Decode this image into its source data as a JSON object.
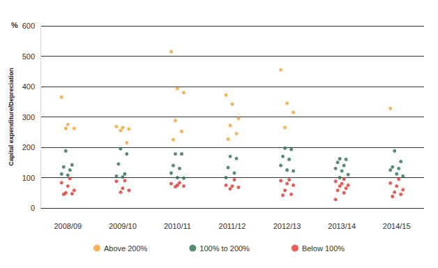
{
  "chart_data": {
    "type": "scatter",
    "y_label": "Capital expenditure/Depreciation",
    "annotations": [
      "%"
    ],
    "categories": [
      "2008/09",
      "2009/10",
      "2010/11",
      "2011/12",
      "2012/13",
      "2013/14",
      "2014/15"
    ],
    "series": [
      {
        "name": "Above 200%",
        "color": "#f7a02c",
        "values": [
          [
            365,
            275,
            262,
            262
          ],
          [
            268,
            265,
            260,
            255,
            215
          ],
          [
            515,
            393,
            380,
            288,
            252,
            225
          ],
          [
            372,
            342,
            295,
            272,
            245,
            227
          ],
          [
            455,
            345,
            315,
            265
          ],
          [],
          [
            328
          ]
        ]
      },
      {
        "name": "100% to 200%",
        "color": "#2a7050",
        "values": [
          [
            188,
            142,
            135,
            125,
            112,
            108
          ],
          [
            195,
            178,
            145,
            112,
            105,
            102
          ],
          [
            178,
            178,
            140,
            130,
            115,
            100,
            98
          ],
          [
            170,
            163,
            133,
            115,
            100
          ],
          [
            197,
            193,
            170,
            160,
            140,
            125,
            122
          ],
          [
            162,
            160,
            150,
            140,
            130,
            122,
            110,
            100
          ],
          [
            188,
            153,
            135,
            130,
            125,
            112,
            105
          ]
        ]
      },
      {
        "name": "Below 100%",
        "color": "#e8302a",
        "values": [
          [
            97,
            83,
            72,
            58,
            50,
            47,
            45
          ],
          [
            90,
            88,
            65,
            58,
            52
          ],
          [
            83,
            80,
            75,
            72,
            70
          ],
          [
            93,
            75,
            72,
            68,
            63
          ],
          [
            93,
            90,
            80,
            75,
            58,
            45,
            42
          ],
          [
            95,
            88,
            80,
            75,
            72,
            65,
            58,
            50,
            28
          ],
          [
            95,
            82,
            72,
            60,
            52,
            45,
            38
          ]
        ]
      }
    ],
    "ylim": [
      0,
      600
    ],
    "yticks": [
      0,
      100,
      200,
      300,
      400,
      500,
      600
    ],
    "grid": true,
    "legend": "bottom",
    "marker": "circle"
  }
}
